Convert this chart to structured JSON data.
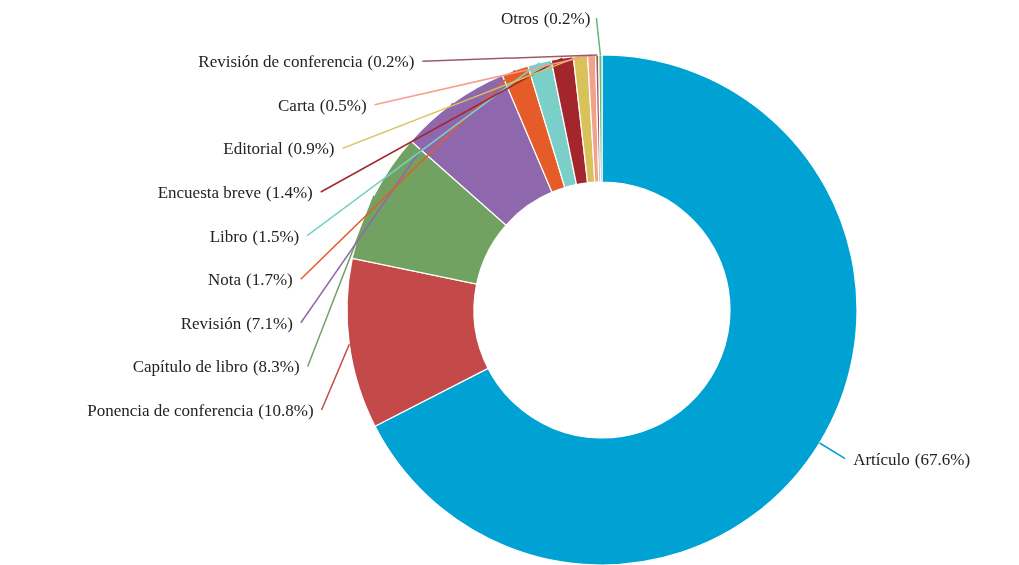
{
  "chart_data": {
    "type": "donut",
    "categories": [
      "Artículo",
      "Ponencia de conferencia",
      "Capítulo de libro",
      "Revisión",
      "Nota",
      "Libro",
      "Encuesta breve",
      "Editorial",
      "Carta",
      "Revisión de conferencia",
      "Otros"
    ],
    "values": [
      67.6,
      10.8,
      8.3,
      7.1,
      1.7,
      1.5,
      1.4,
      0.9,
      0.5,
      0.2,
      0.2
    ],
    "colors": [
      "#00a2d4",
      "#c44a4a",
      "#72a262",
      "#8f67ad",
      "#e65c28",
      "#7acfc8",
      "#a3262c",
      "#d9c25a",
      "#f2a18c",
      "#9c5b62",
      "#6ab37a"
    ],
    "value_labels": [
      "(67.6%)",
      "(10.8%)",
      "(8.3%)",
      "(7.1%)",
      "(1.7%)",
      "(1.5%)",
      "(1.4%)",
      "(0.9%)",
      "(0.5%)",
      "(0.2%)",
      "(0.2%)"
    ]
  }
}
